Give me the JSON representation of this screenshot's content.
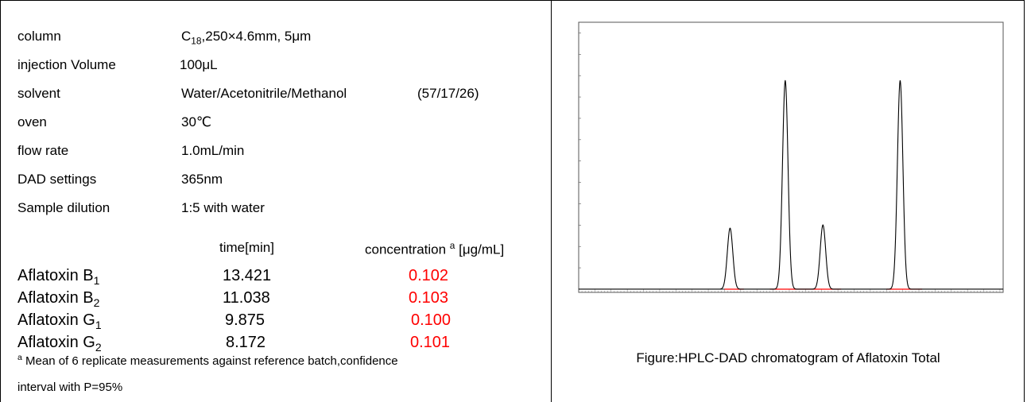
{
  "params": [
    {
      "label": "column",
      "value": "C<sub>18</sub>,250×4.6mm, 5μm"
    },
    {
      "label": "injection Volume",
      "value": "100μL"
    },
    {
      "label": "solvent",
      "value": "Water/Acetonitrile/Methanol",
      "extra": "(57/17/26)"
    },
    {
      "label": "oven",
      "value": "30℃"
    },
    {
      "label": "flow rate",
      "value": "1.0mL/min"
    },
    {
      "label": "DAD settings",
      "value": "365nm"
    },
    {
      "label": "Sample dilution",
      "value": "1:5 with water"
    }
  ],
  "results": {
    "time_header": "time[min]",
    "conc_header": "concentration <sup>a</sup> [μg/mL]",
    "rows": [
      {
        "name": "Aflatoxin B<sub>1</sub>",
        "time": "13.421",
        "conc": "0.102"
      },
      {
        "name": "Aflatoxin B<sub>2</sub>",
        "time": "11.038",
        "conc": "0.103"
      },
      {
        "name": "Aflatoxin G<sub>1</sub>",
        "time": "9.875",
        "conc": "0.100"
      },
      {
        "name": "Aflatoxin G<sub>2</sub>",
        "time": "8.172",
        "conc": "0.101"
      }
    ]
  },
  "footnote": {
    "line1": "<sup>a</sup> Mean of 6 replicate measurements against reference batch,confidence",
    "line2": "interval with P=95%"
  },
  "chart_data": {
    "type": "line",
    "xlim": [
      3.5,
      16.6
    ],
    "ylim": [
      -3,
      250
    ],
    "peaks": [
      {
        "rt": 8.172,
        "height": 57
      },
      {
        "rt": 9.875,
        "height": 195
      },
      {
        "rt": 11.038,
        "height": 60
      },
      {
        "rt": 13.421,
        "height": 195
      }
    ],
    "colors": {
      "trace": "#000000",
      "baseline": "#ff0000"
    }
  },
  "caption": "Figure:HPLC-DAD chromatogram of Aflatoxin Total"
}
